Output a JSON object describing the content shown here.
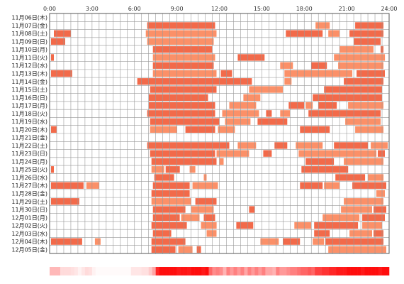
{
  "chart_data": {
    "type": "heatmap",
    "x_range": [
      0,
      24
    ],
    "x_ticks": [
      "0:00",
      "3:00",
      "6:00",
      "9:00",
      "12:00",
      "15:00",
      "18:00",
      "21:00",
      "24:00"
    ],
    "colors": {
      "bar_a": "#f26a4a",
      "bar_b": "#fb9068",
      "grid": "#999999",
      "border": "#555555"
    },
    "rows": [
      {
        "label": "11月06日(木)",
        "segments": []
      },
      {
        "label": "11月07日(金)",
        "segments": [
          [
            6.9,
            11.7
          ],
          [
            18.8,
            19.8
          ],
          [
            21.6,
            23.6
          ]
        ]
      },
      {
        "label": "11月08日(土)",
        "segments": [
          [
            0.3,
            1.5
          ],
          [
            6.8,
            11.8
          ],
          [
            16.7,
            19.3
          ],
          [
            19.7,
            20.5
          ],
          [
            21.2,
            23.6
          ]
        ]
      },
      {
        "label": "11月09日(日)",
        "segments": [
          [
            0.1,
            1.1
          ],
          [
            6.9,
            11.6
          ],
          [
            21.5,
            23.4
          ]
        ]
      },
      {
        "label": "11月10日(月)",
        "segments": [
          [
            7.3,
            11.5
          ],
          [
            20.5,
            22.9
          ],
          [
            23.4,
            23.6
          ]
        ]
      },
      {
        "label": "11月11日(火)",
        "segments": [
          [
            0.1,
            0.3
          ],
          [
            7.3,
            11.7
          ],
          [
            13.3,
            15.2
          ],
          [
            20.1,
            23.7
          ]
        ]
      },
      {
        "label": "11月12日(水)",
        "segments": [
          [
            7.3,
            11.6
          ],
          [
            16.3,
            17.2
          ],
          [
            18.5,
            19.6
          ],
          [
            20.4,
            23.6
          ]
        ]
      },
      {
        "label": "11月13日(木)",
        "segments": [
          [
            0.1,
            1.6
          ],
          [
            7.3,
            11.8
          ],
          [
            12.1,
            12.9
          ],
          [
            16.6,
            21.4
          ],
          [
            21.7,
            23.7
          ]
        ]
      },
      {
        "label": "11月14日(金)",
        "segments": [
          [
            6.2,
            14.3
          ],
          [
            16.6,
            17.1
          ],
          [
            20.8,
            23.6
          ]
        ]
      },
      {
        "label": "11月15日(土)",
        "segments": [
          [
            7.1,
            11.8
          ],
          [
            14.1,
            16.5
          ],
          [
            19.4,
            23.5
          ]
        ]
      },
      {
        "label": "11月16日(日)",
        "segments": [
          [
            7.0,
            11.2
          ],
          [
            13.7,
            14.9
          ],
          [
            18.6,
            23.5
          ]
        ]
      },
      {
        "label": "11月17日(月)",
        "segments": [
          [
            7.0,
            11.7
          ],
          [
            12.7,
            14.6
          ],
          [
            16.9,
            18.0
          ],
          [
            18.1,
            18.6
          ],
          [
            19.0,
            20.3
          ],
          [
            21.1,
            23.6
          ]
        ]
      },
      {
        "label": "11月18日(火)",
        "segments": [
          [
            6.9,
            11.7
          ],
          [
            12.2,
            14.8
          ],
          [
            15.3,
            15.7
          ],
          [
            16.3,
            17.0
          ],
          [
            18.3,
            23.4
          ]
        ]
      },
      {
        "label": "11月19日(水)",
        "segments": [
          [
            7.1,
            12.0
          ],
          [
            12.4,
            14.2
          ],
          [
            14.7,
            16.8
          ],
          [
            20.9,
            23.4
          ]
        ]
      },
      {
        "label": "11月20日(木)",
        "segments": [
          [
            0.1,
            0.5
          ],
          [
            7.1,
            9.0
          ],
          [
            9.6,
            11.7
          ],
          [
            11.9,
            13.1
          ],
          [
            17.7,
            19.8
          ],
          [
            21.6,
            23.6
          ]
        ]
      },
      {
        "label": "11月21日(金)",
        "segments": []
      },
      {
        "label": "11月22日(土)",
        "segments": [
          [
            6.9,
            12.7
          ],
          [
            13.3,
            14.6
          ],
          [
            15.9,
            16.8
          ],
          [
            17.4,
            19.3
          ],
          [
            20.1,
            22.5
          ],
          [
            22.7,
            23.9
          ]
        ]
      },
      {
        "label": "11月23日(日)",
        "segments": [
          [
            7.1,
            11.7
          ],
          [
            11.8,
            14.1
          ],
          [
            15.1,
            15.7
          ],
          [
            17.6,
            23.1
          ],
          [
            23.2,
            23.7
          ]
        ]
      },
      {
        "label": "11月24日(月)",
        "segments": [
          [
            7.2,
            11.8
          ],
          [
            12.0,
            12.3
          ],
          [
            18.1,
            20.1
          ],
          [
            20.8,
            23.6
          ]
        ]
      },
      {
        "label": "11月25日(火)",
        "segments": [
          [
            0.1,
            0.3
          ],
          [
            7.2,
            8.1
          ],
          [
            8.2,
            9.2
          ],
          [
            9.9,
            10.3
          ],
          [
            17.8,
            21.1
          ]
        ]
      },
      {
        "label": "11月26日(水)",
        "segments": [
          [
            7.4,
            8.8
          ],
          [
            10.9,
            11.1
          ],
          [
            20.2,
            22.3
          ],
          [
            22.5,
            23.6
          ]
        ]
      },
      {
        "label": "11月27日(木)",
        "segments": [
          [
            0.1,
            2.4
          ],
          [
            2.6,
            3.5
          ],
          [
            7.3,
            9.9
          ],
          [
            10.1,
            11.9
          ],
          [
            17.7,
            19.3
          ],
          [
            19.4,
            20.5
          ],
          [
            21.4,
            23.8
          ]
        ]
      },
      {
        "label": "11月28日(金)",
        "segments": [
          [
            7.2,
            9.9
          ],
          [
            23.1,
            23.7
          ]
        ]
      },
      {
        "label": "11月29日(土)",
        "segments": [
          [
            0.1,
            2.1
          ],
          [
            7.2,
            10.0
          ],
          [
            10.3,
            11.8
          ],
          [
            20.8,
            23.6
          ]
        ]
      },
      {
        "label": "11月30日(日)",
        "segments": [
          [
            7.3,
            9.6
          ],
          [
            10.0,
            11.6
          ],
          [
            14.1,
            14.5
          ],
          [
            20.6,
            22.8
          ],
          [
            22.9,
            23.8
          ]
        ]
      },
      {
        "label": "12月01日(月)",
        "segments": [
          [
            7.3,
            9.2
          ],
          [
            9.3,
            10.6
          ],
          [
            10.9,
            11.7
          ],
          [
            19.3,
            21.9
          ],
          [
            22.1,
            23.7
          ]
        ]
      },
      {
        "label": "12月02日(火)",
        "segments": [
          [
            7.2,
            9.7
          ],
          [
            10.7,
            11.8
          ],
          [
            13.2,
            14.4
          ],
          [
            17.3,
            18.5
          ],
          [
            18.7,
            21.8
          ],
          [
            22.1,
            23.5
          ]
        ]
      },
      {
        "label": "12月03日(水)",
        "segments": [
          [
            7.3,
            8.6
          ],
          [
            11.1,
            11.8
          ],
          [
            18.7,
            19.8
          ],
          [
            21.2,
            22.8
          ],
          [
            22.9,
            23.6
          ]
        ]
      },
      {
        "label": "12月04日(木)",
        "segments": [
          [
            0.1,
            2.3
          ],
          [
            3.2,
            3.6
          ],
          [
            7.2,
            9.6
          ],
          [
            14.9,
            16.2
          ],
          [
            16.5,
            17.7
          ],
          [
            18.6,
            19.4
          ],
          [
            19.5,
            23.6
          ]
        ]
      },
      {
        "label": "12月05日(金)",
        "segments": [
          [
            7.2,
            8.9
          ],
          [
            9.1,
            10.1
          ],
          [
            10.4,
            10.7
          ],
          [
            19.7,
            23.8
          ]
        ]
      }
    ],
    "density": [
      0.28,
      0.28,
      0.28,
      0.14,
      0.14,
      0.14,
      0.12,
      0.1,
      0.05,
      0.1,
      0.14,
      0.12,
      0.05,
      0.02,
      0.02,
      0.02,
      0.02,
      0.02,
      0.02,
      0.02,
      0.02,
      0.02,
      0.02,
      0.1,
      0.1,
      0.1,
      0.12,
      0.12,
      0.2,
      0.35,
      0.85,
      0.95,
      0.95,
      0.95,
      0.95,
      0.95,
      0.9,
      0.92,
      0.92,
      0.9,
      0.95,
      0.95,
      0.95,
      0.9,
      0.95,
      0.6,
      0.45,
      0.5,
      0.45,
      0.3,
      0.5,
      0.4,
      0.5,
      0.4,
      0.5,
      0.35,
      0.5,
      0.4,
      0.5,
      0.4,
      0.5,
      0.35,
      0.35,
      0.3,
      0.5,
      0.4,
      0.4,
      0.45,
      0.5,
      0.5,
      0.55,
      0.6,
      0.6,
      0.65,
      0.6,
      0.75,
      0.75,
      0.8,
      0.8,
      0.85,
      0.85,
      0.9,
      0.9,
      0.9,
      0.95,
      0.95,
      0.95,
      0.95,
      0.9,
      0.95,
      0.95,
      0.95,
      0.95,
      0.9,
      0.95,
      0.95
    ]
  }
}
